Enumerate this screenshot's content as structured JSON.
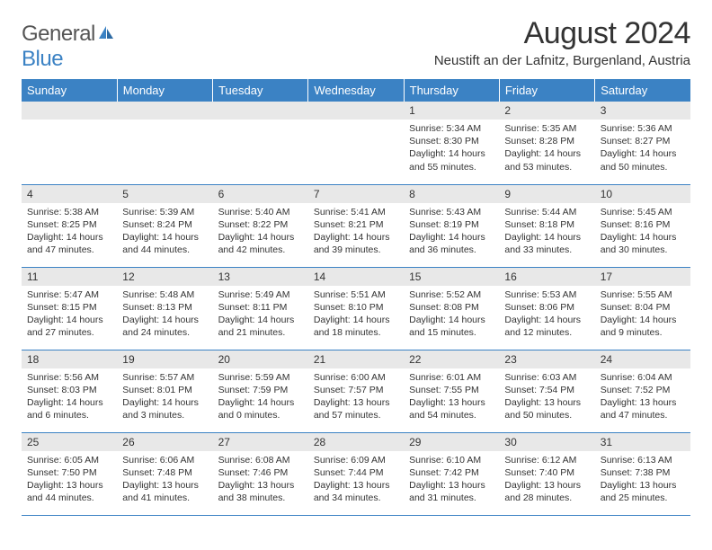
{
  "logo": {
    "text_general": "General",
    "text_blue": "Blue"
  },
  "title": "August 2024",
  "location": "Neustift an der Lafnitz, Burgenland, Austria",
  "colors": {
    "header_bg": "#3b82c4",
    "header_text": "#ffffff",
    "daynum_bg": "#e8e8e8",
    "row_border": "#3b82c4",
    "body_text": "#333333",
    "background": "#ffffff"
  },
  "typography": {
    "title_fontsize": 34,
    "location_fontsize": 15,
    "dayheader_fontsize": 13,
    "daynum_fontsize": 12,
    "content_fontsize": 10.5
  },
  "day_headers": [
    "Sunday",
    "Monday",
    "Tuesday",
    "Wednesday",
    "Thursday",
    "Friday",
    "Saturday"
  ],
  "weeks": [
    [
      null,
      null,
      null,
      null,
      {
        "n": "1",
        "sr": "5:34 AM",
        "ss": "8:30 PM",
        "dl": "14 hours and 55 minutes."
      },
      {
        "n": "2",
        "sr": "5:35 AM",
        "ss": "8:28 PM",
        "dl": "14 hours and 53 minutes."
      },
      {
        "n": "3",
        "sr": "5:36 AM",
        "ss": "8:27 PM",
        "dl": "14 hours and 50 minutes."
      }
    ],
    [
      {
        "n": "4",
        "sr": "5:38 AM",
        "ss": "8:25 PM",
        "dl": "14 hours and 47 minutes."
      },
      {
        "n": "5",
        "sr": "5:39 AM",
        "ss": "8:24 PM",
        "dl": "14 hours and 44 minutes."
      },
      {
        "n": "6",
        "sr": "5:40 AM",
        "ss": "8:22 PM",
        "dl": "14 hours and 42 minutes."
      },
      {
        "n": "7",
        "sr": "5:41 AM",
        "ss": "8:21 PM",
        "dl": "14 hours and 39 minutes."
      },
      {
        "n": "8",
        "sr": "5:43 AM",
        "ss": "8:19 PM",
        "dl": "14 hours and 36 minutes."
      },
      {
        "n": "9",
        "sr": "5:44 AM",
        "ss": "8:18 PM",
        "dl": "14 hours and 33 minutes."
      },
      {
        "n": "10",
        "sr": "5:45 AM",
        "ss": "8:16 PM",
        "dl": "14 hours and 30 minutes."
      }
    ],
    [
      {
        "n": "11",
        "sr": "5:47 AM",
        "ss": "8:15 PM",
        "dl": "14 hours and 27 minutes."
      },
      {
        "n": "12",
        "sr": "5:48 AM",
        "ss": "8:13 PM",
        "dl": "14 hours and 24 minutes."
      },
      {
        "n": "13",
        "sr": "5:49 AM",
        "ss": "8:11 PM",
        "dl": "14 hours and 21 minutes."
      },
      {
        "n": "14",
        "sr": "5:51 AM",
        "ss": "8:10 PM",
        "dl": "14 hours and 18 minutes."
      },
      {
        "n": "15",
        "sr": "5:52 AM",
        "ss": "8:08 PM",
        "dl": "14 hours and 15 minutes."
      },
      {
        "n": "16",
        "sr": "5:53 AM",
        "ss": "8:06 PM",
        "dl": "14 hours and 12 minutes."
      },
      {
        "n": "17",
        "sr": "5:55 AM",
        "ss": "8:04 PM",
        "dl": "14 hours and 9 minutes."
      }
    ],
    [
      {
        "n": "18",
        "sr": "5:56 AM",
        "ss": "8:03 PM",
        "dl": "14 hours and 6 minutes."
      },
      {
        "n": "19",
        "sr": "5:57 AM",
        "ss": "8:01 PM",
        "dl": "14 hours and 3 minutes."
      },
      {
        "n": "20",
        "sr": "5:59 AM",
        "ss": "7:59 PM",
        "dl": "14 hours and 0 minutes."
      },
      {
        "n": "21",
        "sr": "6:00 AM",
        "ss": "7:57 PM",
        "dl": "13 hours and 57 minutes."
      },
      {
        "n": "22",
        "sr": "6:01 AM",
        "ss": "7:55 PM",
        "dl": "13 hours and 54 minutes."
      },
      {
        "n": "23",
        "sr": "6:03 AM",
        "ss": "7:54 PM",
        "dl": "13 hours and 50 minutes."
      },
      {
        "n": "24",
        "sr": "6:04 AM",
        "ss": "7:52 PM",
        "dl": "13 hours and 47 minutes."
      }
    ],
    [
      {
        "n": "25",
        "sr": "6:05 AM",
        "ss": "7:50 PM",
        "dl": "13 hours and 44 minutes."
      },
      {
        "n": "26",
        "sr": "6:06 AM",
        "ss": "7:48 PM",
        "dl": "13 hours and 41 minutes."
      },
      {
        "n": "27",
        "sr": "6:08 AM",
        "ss": "7:46 PM",
        "dl": "13 hours and 38 minutes."
      },
      {
        "n": "28",
        "sr": "6:09 AM",
        "ss": "7:44 PM",
        "dl": "13 hours and 34 minutes."
      },
      {
        "n": "29",
        "sr": "6:10 AM",
        "ss": "7:42 PM",
        "dl": "13 hours and 31 minutes."
      },
      {
        "n": "30",
        "sr": "6:12 AM",
        "ss": "7:40 PM",
        "dl": "13 hours and 28 minutes."
      },
      {
        "n": "31",
        "sr": "6:13 AM",
        "ss": "7:38 PM",
        "dl": "13 hours and 25 minutes."
      }
    ]
  ],
  "labels": {
    "sunrise": "Sunrise:",
    "sunset": "Sunset:",
    "daylight": "Daylight:"
  }
}
